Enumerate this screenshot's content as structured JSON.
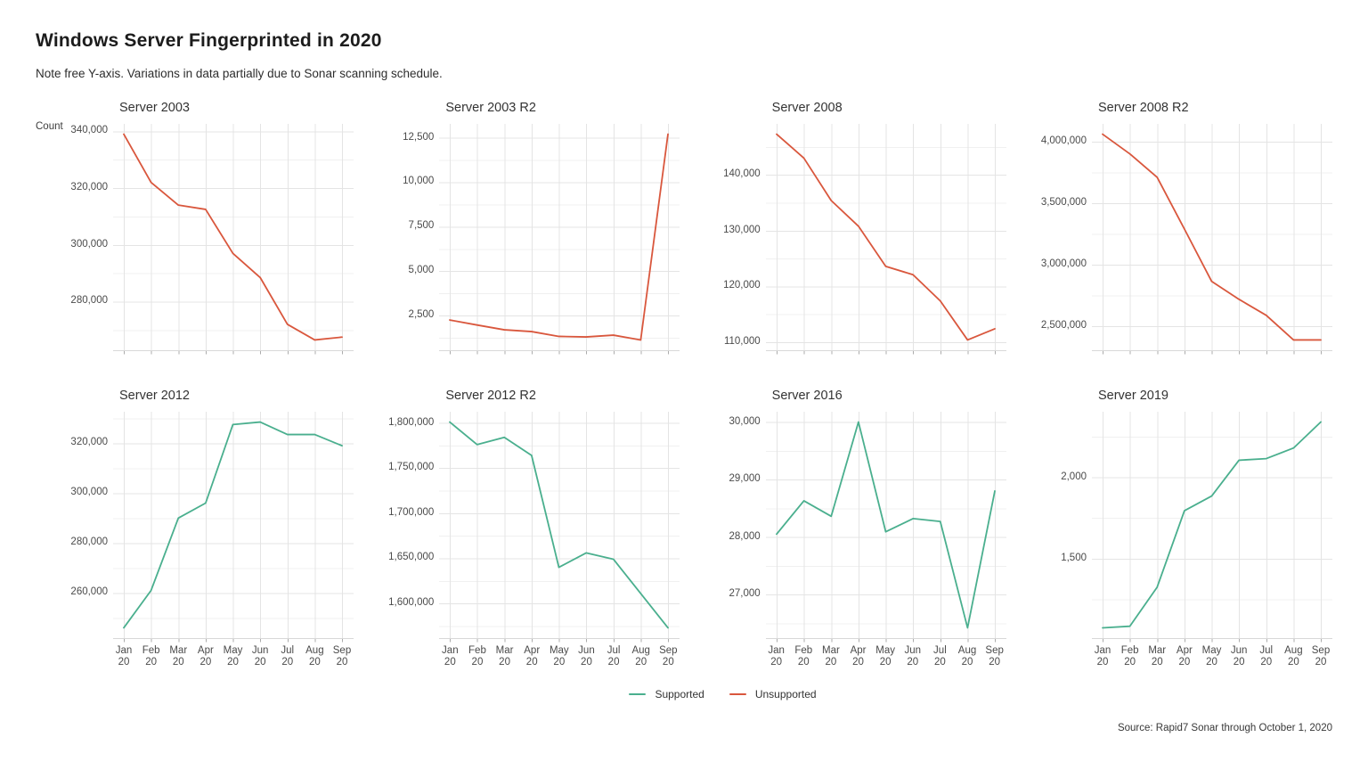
{
  "header": {
    "title": "Windows Server Fingerprinted in 2020",
    "subtitle": "Note free Y-axis. Variations in data partially due to Sonar scanning schedule.",
    "y_axis_title": "Count"
  },
  "legend": {
    "items": [
      {
        "label": "Supported",
        "color": "#4aaf8e"
      },
      {
        "label": "Unsupported",
        "color": "#d9573d"
      }
    ]
  },
  "footer": {
    "source": "Source: Rapid7 Sonar through October 1, 2020"
  },
  "chart_data": {
    "type": "line",
    "facet_layout": {
      "rows": 2,
      "cols": 4
    },
    "grid": "on",
    "legend_position": "bottom",
    "x_categories": [
      "Jan 20",
      "Feb 20",
      "Mar 20",
      "Apr 20",
      "May 20",
      "Jun 20",
      "Jul 20",
      "Aug 20",
      "Sep 20"
    ],
    "series_colors": {
      "Supported": "#4aaf8e",
      "Unsupported": "#d9573d"
    },
    "facets": [
      {
        "title": "Server 2003",
        "series": "Unsupported",
        "yticks": [
          280000,
          300000,
          320000,
          340000
        ],
        "ylim": [
          262875,
          342625
        ],
        "values": [
          339000,
          322000,
          314000,
          312500,
          297000,
          288500,
          272000,
          266500,
          267500
        ]
      },
      {
        "title": "Server 2003 R2",
        "series": "Unsupported",
        "yticks": [
          2500,
          5000,
          7500,
          10000,
          12500
        ],
        "ylim": [
          551,
          13279
        ],
        "values": [
          2250,
          1970,
          1700,
          1600,
          1330,
          1300,
          1400,
          1130,
          12700
        ]
      },
      {
        "title": "Server 2008",
        "series": "Unsupported",
        "yticks": [
          110000,
          120000,
          130000,
          140000
        ],
        "ylim": [
          108555,
          149145
        ],
        "values": [
          147300,
          143000,
          135400,
          130800,
          123600,
          122100,
          117400,
          110400,
          112400
        ]
      },
      {
        "title": "Server 2008 R2",
        "series": "Unsupported",
        "yticks": [
          2500000,
          3000000,
          3500000,
          4000000
        ],
        "ylim": [
          2306500,
          4143500
        ],
        "values": [
          4060000,
          3900000,
          3710000,
          3290000,
          2865000,
          2720000,
          2590000,
          2390000,
          2390000
        ]
      },
      {
        "title": "Server 2012",
        "series": "Supported",
        "yticks": [
          260000,
          280000,
          300000,
          320000
        ],
        "ylim": [
          241875,
          332625
        ],
        "values": [
          246000,
          261000,
          290000,
          296000,
          327500,
          328500,
          323500,
          323500,
          319000
        ]
      },
      {
        "title": "Server 2012 R2",
        "series": "Supported",
        "yticks": [
          1600000,
          1650000,
          1700000,
          1750000,
          1800000
        ],
        "ylim": [
          1561600,
          1812400
        ],
        "values": [
          1801000,
          1776000,
          1784000,
          1764000,
          1640000,
          1656000,
          1649000,
          1611000,
          1573000
        ]
      },
      {
        "title": "Server 2016",
        "series": "Supported",
        "yticks": [
          27000,
          28000,
          29000,
          30000
        ],
        "ylim": [
          26241,
          30179
        ],
        "values": [
          28050,
          28630,
          28360,
          30000,
          28090,
          28320,
          28270,
          26420,
          28800
        ]
      },
      {
        "title": "Server 2019",
        "series": "Supported",
        "yticks": [
          1500,
          2000
        ],
        "ylim": [
          1012,
          2403
        ],
        "values": [
          1075,
          1085,
          1325,
          1795,
          1885,
          2105,
          2115,
          2180,
          2340
        ]
      }
    ]
  }
}
